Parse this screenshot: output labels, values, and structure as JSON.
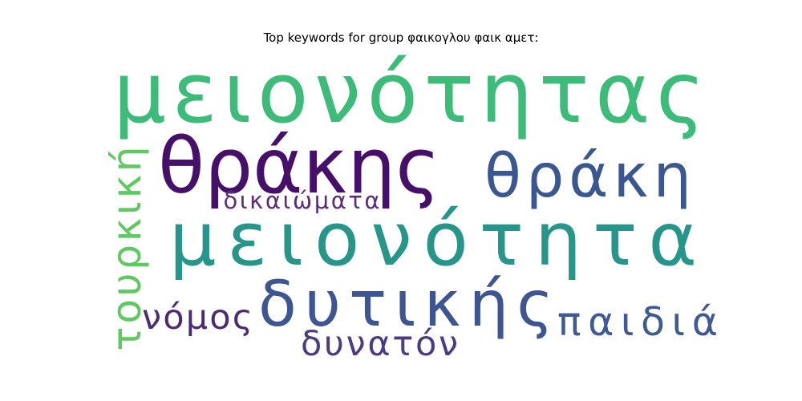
{
  "chart_data": {
    "type": "wordcloud",
    "title": "Top keywords for group φαικογλου φαικ αμετ:",
    "words": [
      {
        "text": "μειονότητας",
        "weight": 1.0,
        "color": "#3dbb79"
      },
      {
        "text": "θράκης",
        "weight": 0.86,
        "color": "#46106a"
      },
      {
        "text": "μειονότητα",
        "weight": 0.83,
        "color": "#27958a"
      },
      {
        "text": "δυτικής",
        "weight": 0.71,
        "color": "#3d5592"
      },
      {
        "text": "θράκη",
        "weight": 0.67,
        "color": "#3b5792"
      },
      {
        "text": "τουρκική",
        "weight": 0.37,
        "color": "#5ec961"
      },
      {
        "text": "παιδιά",
        "weight": 0.36,
        "color": "#3f5a93"
      },
      {
        "text": "νόμος",
        "weight": 0.3,
        "color": "#4b2c74"
      },
      {
        "text": "δυνατόν",
        "weight": 0.3,
        "color": "#4d3a82"
      },
      {
        "text": "δικαιώματα",
        "weight": 0.22,
        "color": "#5a2e7d"
      }
    ]
  }
}
